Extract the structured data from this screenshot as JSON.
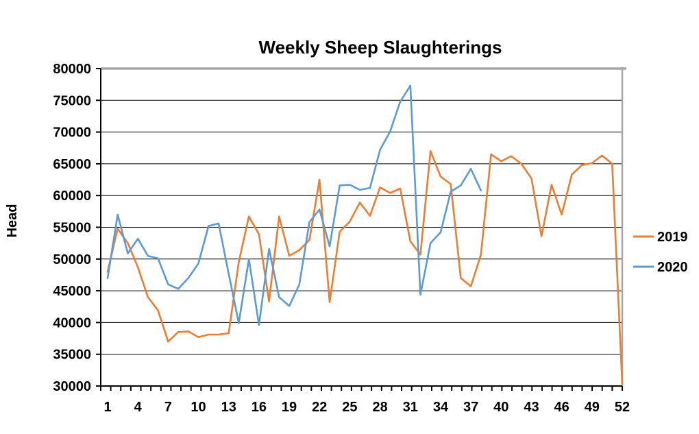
{
  "chart_data": {
    "type": "line",
    "title": "Weekly Sheep Slaughterings",
    "xlabel": "",
    "ylabel": "Head",
    "x_label_every": 3,
    "x_tick_labels": [
      1,
      4,
      7,
      10,
      13,
      16,
      19,
      22,
      25,
      28,
      31,
      34,
      37,
      40,
      43,
      46,
      49,
      52
    ],
    "weeks": 52,
    "ylim": [
      30000,
      80000
    ],
    "y_tick_step": 5000,
    "grid": "horizontal",
    "legend_position": "right",
    "series": [
      {
        "name": "2019",
        "color": "#ED7D31",
        "values": [
          48000,
          54800,
          52500,
          48700,
          44000,
          41900,
          37000,
          38500,
          38600,
          37700,
          38100,
          38100,
          38300,
          49500,
          56700,
          53900,
          43300,
          56700,
          50500,
          51400,
          53000,
          62500,
          43200,
          54300,
          55900,
          58900,
          56800,
          61300,
          60400,
          61100,
          52800,
          50700,
          67000,
          63000,
          61800,
          47000,
          45700,
          50700,
          66500,
          65400,
          66200,
          65000,
          62700,
          53600,
          61700,
          57000,
          63300,
          64800,
          65100,
          66300,
          65000,
          30300
        ]
      },
      {
        "name": "2020",
        "color": "#5B9BD5",
        "values": [
          47000,
          57000,
          50900,
          53200,
          50500,
          50100,
          46000,
          45300,
          47000,
          49300,
          55200,
          55600,
          47700,
          39900,
          50000,
          39600,
          51600,
          44000,
          42600,
          46000,
          55800,
          57800,
          52000,
          61600,
          61700,
          60900,
          61200,
          67200,
          70100,
          74800,
          77300,
          44400,
          52500,
          54200,
          60600,
          61600,
          64200,
          60800
        ]
      }
    ],
    "border_color": "#A6A6A6",
    "gridline_color": "#000000",
    "axis_color": "#000000"
  }
}
